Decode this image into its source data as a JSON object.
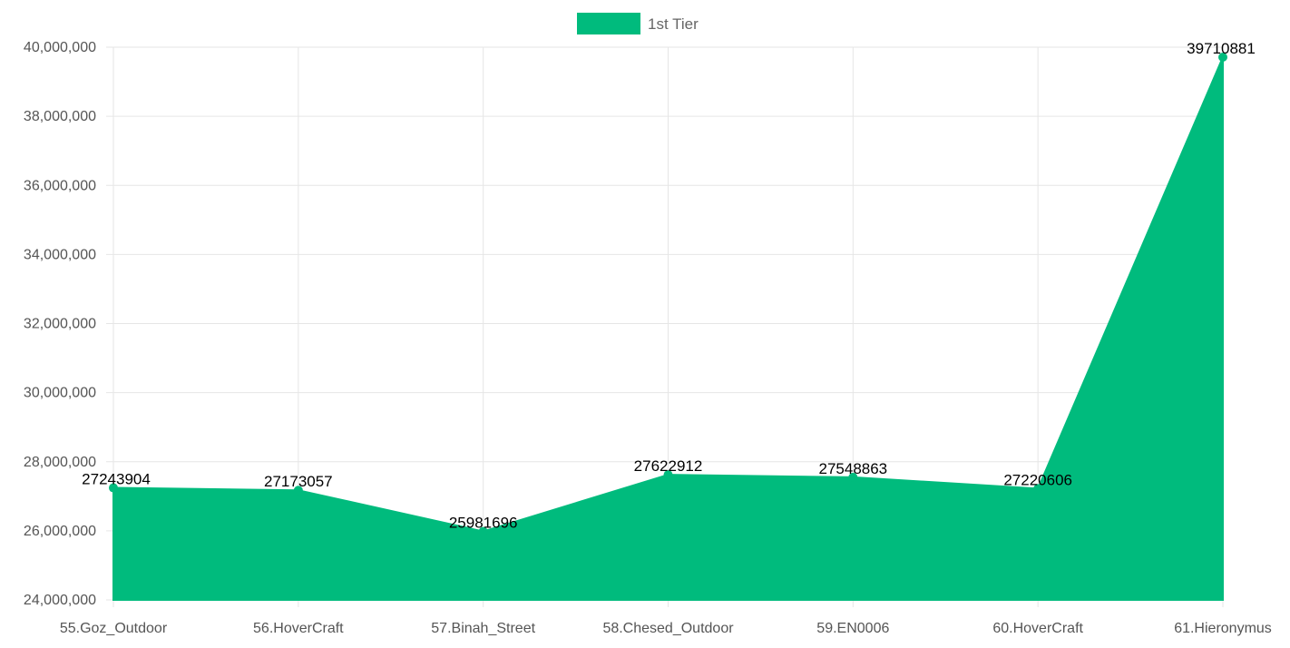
{
  "chart_data": {
    "type": "area",
    "title": "",
    "xlabel": "",
    "ylabel": "",
    "categories": [
      "55.Goz_Outdoor",
      "56.HoverCraft",
      "57.Binah_Street",
      "58.Chesed_Outdoor",
      "59.EN0006",
      "60.HoverCraft",
      "61.Hieronymus"
    ],
    "series": [
      {
        "name": "1st Tier",
        "color": "#00BB7D",
        "values": [
          27243904,
          27173057,
          25981696,
          27622912,
          27548863,
          27220606,
          39710881
        ]
      }
    ],
    "ylim": [
      24000000,
      40000000
    ],
    "yticks": [
      24000000,
      26000000,
      28000000,
      30000000,
      32000000,
      34000000,
      36000000,
      38000000,
      40000000
    ],
    "ytick_labels": [
      "24,000,000",
      "26,000,000",
      "28,000,000",
      "30,000,000",
      "32,000,000",
      "34,000,000",
      "36,000,000",
      "38,000,000",
      "40,000,000"
    ],
    "data_labels": [
      "27243904",
      "27173057",
      "25981696",
      "27622912",
      "27548863",
      "27220606",
      "39710881"
    ],
    "grid": true,
    "legend_position": "top-center"
  }
}
